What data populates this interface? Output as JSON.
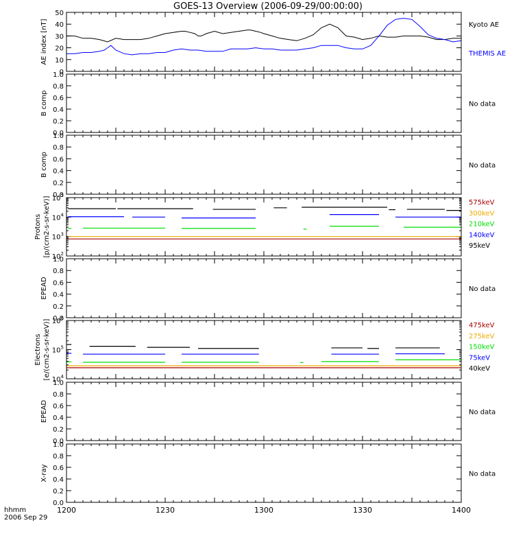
{
  "title": "GOES-13 Overview (2006-09-29/00:00:00)",
  "x_axis": {
    "ticks": [
      "1200",
      "1230",
      "1300",
      "1330",
      "1400"
    ],
    "corner_label_1": "hhmm",
    "corner_label_2": "2006 Sep 29"
  },
  "colors": {
    "black": "#000000",
    "blue": "#0000ff",
    "green": "#00dd00",
    "orange": "#eeaa00",
    "darkred": "#aa0000",
    "gray": "#888888"
  },
  "chart_data": [
    {
      "id": "ae",
      "type": "line",
      "ylabel": "AE index [nT]",
      "ylim": [
        0,
        50
      ],
      "yticks": [
        "0",
        "10",
        "20",
        "30",
        "40",
        "50"
      ],
      "series": [
        {
          "name": "Kyoto AE",
          "color": "#000000",
          "x": [
            0,
            5,
            10,
            12,
            15,
            20,
            25,
            30,
            35,
            40,
            45,
            50,
            55,
            60,
            65,
            70,
            72,
            75,
            78,
            80,
            82,
            85,
            90,
            95,
            100,
            105,
            110,
            112,
            115,
            118,
            120,
            125,
            130,
            135,
            140,
            145,
            150,
            155,
            160,
            165,
            170,
            175,
            180,
            185,
            190,
            195,
            200,
            205,
            210,
            215,
            220,
            225,
            230,
            235,
            240
          ],
          "y": [
            30,
            30,
            28,
            28,
            28,
            27,
            25,
            28,
            27,
            27,
            27,
            28,
            30,
            32,
            33,
            34,
            34,
            33,
            32,
            30,
            30,
            32,
            34,
            32,
            33,
            34,
            35,
            35,
            34,
            33,
            32,
            30,
            28,
            27,
            26,
            28,
            31,
            37,
            40,
            37,
            30,
            29,
            27,
            28,
            30,
            29,
            29,
            30,
            30,
            30,
            29,
            27,
            27,
            28,
            28
          ]
        },
        {
          "name": "THEMIS AE",
          "color": "#0000ff",
          "x": [
            0,
            5,
            10,
            15,
            20,
            23,
            25,
            27,
            30,
            35,
            40,
            45,
            50,
            55,
            60,
            65,
            70,
            75,
            80,
            85,
            90,
            95,
            100,
            105,
            110,
            115,
            120,
            125,
            130,
            135,
            140,
            145,
            150,
            155,
            160,
            165,
            170,
            175,
            180,
            185,
            190,
            195,
            200,
            205,
            210,
            215,
            220,
            225,
            230,
            235,
            240
          ],
          "y": [
            15,
            15,
            16,
            16,
            17,
            18,
            20,
            22,
            18,
            15,
            14,
            15,
            15,
            16,
            16,
            18,
            19,
            18,
            18,
            17,
            17,
            17,
            19,
            19,
            19,
            20,
            19,
            19,
            18,
            18,
            18,
            19,
            20,
            22,
            22,
            22,
            20,
            19,
            19,
            22,
            30,
            39,
            44,
            45,
            44,
            38,
            31,
            28,
            27,
            25,
            26
          ]
        }
      ],
      "annotations": []
    },
    {
      "id": "bcomp1",
      "type": "line",
      "ylabel": "B comp",
      "ylim": [
        0,
        1
      ],
      "yticks": [
        "0.0",
        "0.2",
        "0.4",
        "0.6",
        "0.8",
        "1.0"
      ],
      "series": [],
      "annotations": [
        {
          "text": "No data",
          "color": "#000000"
        }
      ]
    },
    {
      "id": "bcomp2",
      "type": "line",
      "ylabel": "B comp",
      "ylim": [
        0,
        1
      ],
      "yticks": [
        "0.0",
        "0.2",
        "0.4",
        "0.6",
        "0.8",
        "1.0"
      ],
      "series": [],
      "annotations": [
        {
          "text": "No data",
          "color": "#000000"
        }
      ]
    },
    {
      "id": "protons",
      "type": "line",
      "log": true,
      "ylabel_1": "Protons",
      "ylabel_2": "[p/(cm2-s-sr-keV)]",
      "ylim": [
        100,
        100000
      ],
      "yticks_exp": [
        "2",
        "3",
        "4",
        "5"
      ],
      "series": [
        {
          "name": "95keV",
          "color": "#000000",
          "segments": [
            [
              1,
              30,
              27000
            ],
            [
              31,
              77,
              27000
            ],
            [
              89,
              115,
              25000
            ],
            [
              126,
              134,
              30000
            ],
            [
              143,
              195,
              32000
            ],
            [
              196,
              200,
              24000
            ],
            [
              207,
              230,
              25000
            ],
            [
              231,
              240,
              22000
            ]
          ]
        },
        {
          "name": "140keV",
          "color": "#0000ff",
          "segments": [
            [
              1,
              35,
              10500
            ],
            [
              40,
              60,
              10000
            ],
            [
              70,
              115,
              9000
            ],
            [
              160,
              190,
              13500
            ],
            [
              200,
              240,
              10000
            ]
          ]
        },
        {
          "name": "210keV",
          "color": "#00dd00",
          "segments": [
            [
              1,
              3,
              2600
            ],
            [
              10,
              60,
              2700
            ],
            [
              70,
              115,
              2600
            ],
            [
              144,
              146,
              2400
            ],
            [
              160,
              190,
              3400
            ],
            [
              205,
              240,
              3000
            ]
          ]
        },
        {
          "name": "300keV",
          "color": "#eeaa00",
          "segments": [
            [
              1,
              240,
              1000
            ]
          ]
        },
        {
          "name": "575keV",
          "color": "#aa0000",
          "segments": [
            [
              1,
              240,
              750
            ]
          ]
        }
      ],
      "legend_order": [
        "575keV",
        "300keV",
        "210keV",
        "140keV",
        "95keV"
      ],
      "annotations": []
    },
    {
      "id": "epead1",
      "type": "line",
      "ylabel": "EPEAD",
      "ylim": [
        0,
        1
      ],
      "yticks": [
        "0.0",
        "0.2",
        "0.4",
        "0.6",
        "0.8",
        "1.0"
      ],
      "series": [],
      "annotations": [
        {
          "text": "No data",
          "color": "#000000"
        }
      ]
    },
    {
      "id": "electrons",
      "type": "line",
      "log": true,
      "ylabel_1": "Electrons",
      "ylabel_2": "[e/(cm2-s-sr-keV)]",
      "ylim": [
        10000,
        1000000
      ],
      "yticks_exp": [
        "4",
        "5",
        "6"
      ],
      "series": [
        {
          "name": "40keV",
          "color": "#000000",
          "segments": [
            [
              0,
              3,
              150000
            ],
            [
              14,
              42,
              130000
            ],
            [
              49,
              75,
              120000
            ],
            [
              80,
              117,
              110000
            ],
            [
              161,
              180,
              115000
            ],
            [
              183,
              190,
              110000
            ],
            [
              200,
              227,
              115000
            ]
          ]
        },
        {
          "name": "75keV",
          "color": "#0000ff",
          "segments": [
            [
              0,
              3,
              75000
            ],
            [
              10,
              60,
              70000
            ],
            [
              70,
              117,
              70000
            ],
            [
              161,
              190,
              70000
            ],
            [
              200,
              230,
              72000
            ]
          ]
        },
        {
          "name": "150keV",
          "color": "#00dd00",
          "segments": [
            [
              0,
              3,
              38000
            ],
            [
              10,
              60,
              37000
            ],
            [
              70,
              117,
              37000
            ],
            [
              142,
              144,
              36000
            ],
            [
              155,
              190,
              39000
            ],
            [
              200,
              240,
              45000
            ]
          ]
        },
        {
          "name": "275keV",
          "color": "#eeaa00",
          "segments": [
            [
              0,
              240,
              28000
            ]
          ]
        },
        {
          "name": "475keV",
          "color": "#aa0000",
          "segments": [
            [
              0,
              240,
              24000
            ]
          ]
        }
      ],
      "legend_order": [
        "475keV",
        "275keV",
        "150keV",
        "75keV",
        "40keV"
      ],
      "annotations": []
    },
    {
      "id": "epead2",
      "type": "line",
      "ylabel": "EPEAD",
      "ylim": [
        0,
        1
      ],
      "yticks": [
        "0.0",
        "0.2",
        "0.4",
        "0.6",
        "0.8",
        "1.0"
      ],
      "series": [],
      "annotations": [
        {
          "text": "No data",
          "color": "#000000"
        }
      ]
    },
    {
      "id": "xray",
      "type": "line",
      "ylabel": "X-ray",
      "ylim": [
        0,
        1
      ],
      "yticks": [
        "0.0",
        "0.2",
        "0.4",
        "0.6",
        "0.8",
        "1.0"
      ],
      "series": [],
      "annotations": [
        {
          "text": "No data",
          "color": "#000000"
        }
      ]
    }
  ]
}
